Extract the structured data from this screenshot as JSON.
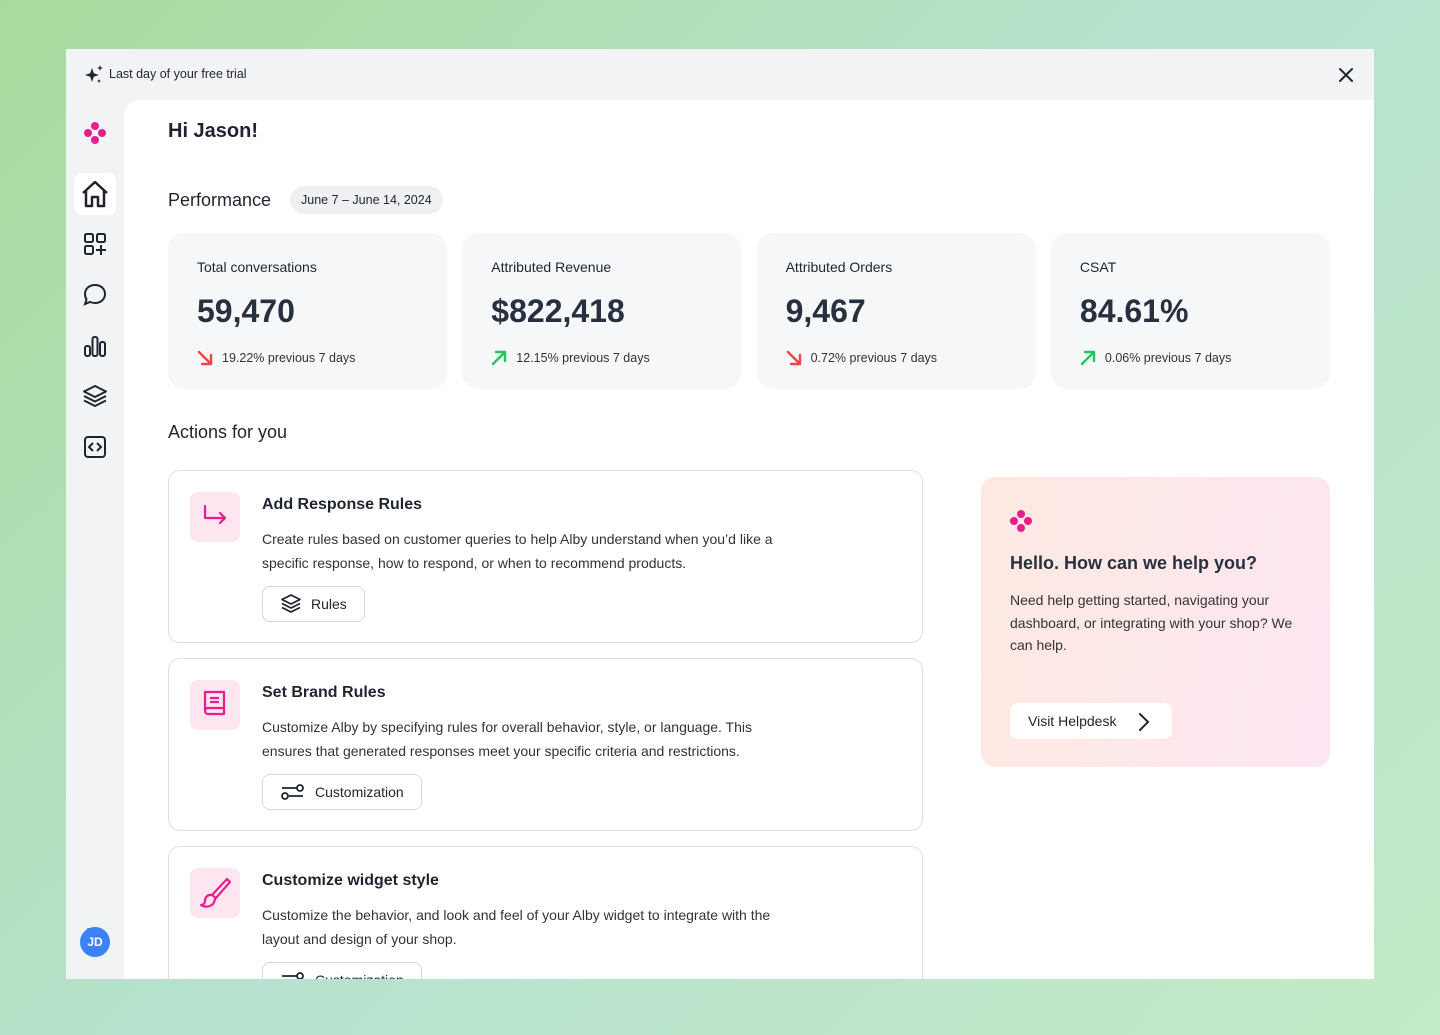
{
  "banner": {
    "text": "Last day of your free trial"
  },
  "greeting": "Hi Jason!",
  "performance": {
    "title": "Performance",
    "date_range": "June 7 – June 14, 2024",
    "cards": [
      {
        "label": "Total conversations",
        "value": "59,470",
        "change": "19.22% previous 7 days",
        "trend": "down"
      },
      {
        "label": "Attributed Revenue",
        "value": "$822,418",
        "change": "12.15% previous 7 days",
        "trend": "up"
      },
      {
        "label": "Attributed Orders",
        "value": "9,467",
        "change": "0.72% previous 7 days",
        "trend": "down"
      },
      {
        "label": "CSAT",
        "value": "84.61%",
        "change": "0.06% previous 7 days",
        "trend": "up"
      }
    ]
  },
  "actions": {
    "title": "Actions for you",
    "items": [
      {
        "title": "Add Response Rules",
        "description": "Create rules based on customer queries to help Alby understand when you’d like a specific response, how to respond, or when to recommend products.",
        "button": "Rules"
      },
      {
        "title": "Set Brand Rules",
        "description": "Customize Alby by specifying rules for overall behavior, style, or language. This ensures that generated responses meet your specific criteria and restrictions.",
        "button": "Customization"
      },
      {
        "title": "Customize widget style",
        "description": "Customize the behavior, and look and feel of your Alby widget to integrate with the layout and design of your shop.",
        "button": "Customization"
      }
    ]
  },
  "help": {
    "title": "Hello. How can we help you?",
    "text": "Need help getting started, navigating your dashboard, or integrating with your shop? We can help.",
    "button": "Visit Helpdesk"
  },
  "user": {
    "initials": "JD"
  }
}
